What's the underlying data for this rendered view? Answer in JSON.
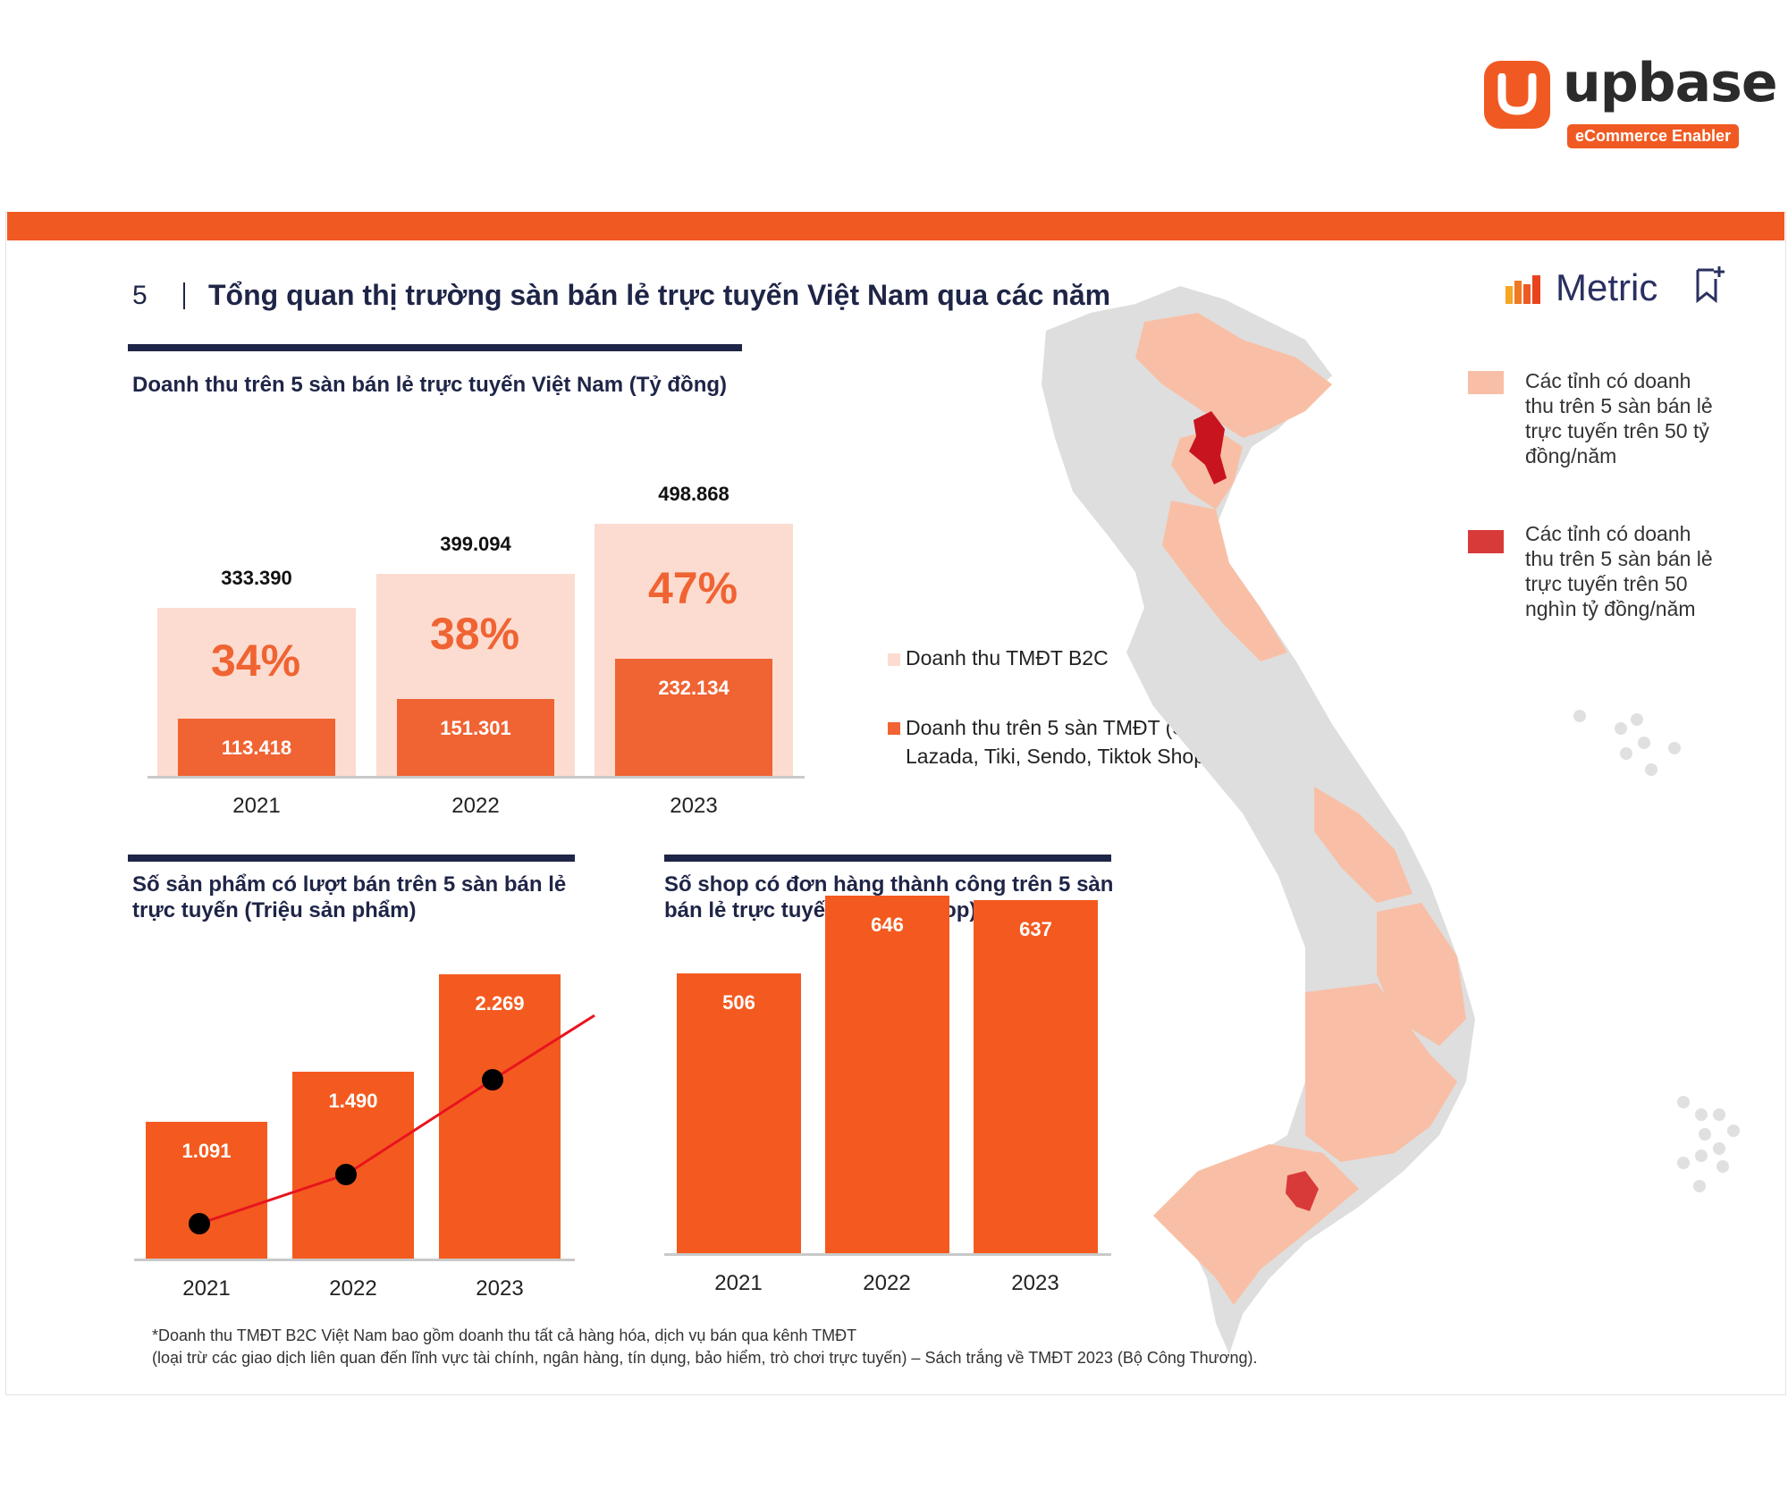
{
  "brand": {
    "logo_word": "upbase",
    "logo_tagline": "eCommerce Enabler",
    "accent": "#f05a22",
    "navy": "#1f2547"
  },
  "slide": {
    "number": "5",
    "title": "Tổng quan thị trường sàn bán lẻ trực tuyến Việt Nam qua các năm",
    "partner": "Metric"
  },
  "legend": {
    "b2c": "Doanh thu TMĐT B2C",
    "five_platforms": "Doanh thu trên 5 sàn TMĐT (Shopee, Lazada, Tiki, Sendo, Tiktok Shop)",
    "five_platforms_line1": "Doanh thu trên 5 sàn TMĐT (Shopee,",
    "five_platforms_line2": "Lazada, Tiki, Sendo, Tiktok Shop)"
  },
  "map_legend": {
    "over_50b": "Các tỉnh có doanh thu trên 5 sàn bán lẻ trực tuyến trên 50 tỷ đồng/năm",
    "over_50k_b": "Các tỉnh có doanh thu trên 5 sàn bán lẻ trực tuyến trên 50 nghìn tỷ đồng/năm",
    "light_color": "#f8bfa6",
    "dark_color": "#d83a3a"
  },
  "footnote": {
    "line1": "*Doanh thu TMĐT B2C Việt Nam bao gồm doanh thu tất cả hàng hóa, dịch vụ bán qua kênh TMĐT",
    "line2": "(loại trừ các giao dịch liên quan đến lĩnh vực tài chính, ngân hàng, tín dụng, bảo hiểm, trò chơi trực tuyến) – Sách trắng về TMĐT 2023 (Bộ Công Thương)."
  },
  "chart_data": [
    {
      "id": "revenue",
      "type": "bar",
      "title": "Doanh thu trên 5 sàn bán lẻ trực tuyến Việt Nam (Tỷ đồng)",
      "categories": [
        "2021",
        "2022",
        "2023"
      ],
      "series": [
        {
          "name": "Doanh thu TMĐT B2C",
          "values": [
            333390,
            399094,
            498868
          ],
          "labels": [
            "333.390",
            "399.094",
            "498.868"
          ],
          "color": "#fcdcd0"
        },
        {
          "name": "Doanh thu trên 5 sàn TMĐT (Shopee, Lazada, Tiki, Sendo, Tiktok Shop)",
          "values": [
            113418,
            151301,
            232134
          ],
          "labels": [
            "113.418",
            "151.301",
            "232.134"
          ],
          "color": "#f06332"
        }
      ],
      "share_labels": [
        "34%",
        "38%",
        "47%"
      ],
      "ylim": [
        0,
        560000
      ]
    },
    {
      "id": "products",
      "type": "bar",
      "title": "Số sản phẩm có lượt bán trên 5 sàn bán lẻ trực tuyến (Triệu sản phẩm)",
      "title_line1": "Số sản phẩm có lượt bán trên 5 sàn bán lẻ",
      "title_line2": "trực tuyến (Triệu sản phẩm)",
      "categories": [
        "2021",
        "2022",
        "2023"
      ],
      "values": [
        1091,
        1490,
        2269
      ],
      "labels": [
        "1.091",
        "1.490",
        "2.269"
      ],
      "trend_line": true,
      "ylim": [
        0,
        2300
      ]
    },
    {
      "id": "shops",
      "type": "bar",
      "title": "Số shop có đơn hàng thành công trên 5 sàn bán lẻ trực tuyến (Nghìn shop)",
      "title_line1": "Số shop có đơn hàng thành công trên 5 sàn",
      "title_line2": "bán lẻ trực tuyến (Nghìn shop)",
      "categories": [
        "2021",
        "2022",
        "2023"
      ],
      "values": [
        506,
        646,
        637
      ],
      "labels": [
        "506",
        "646",
        "637"
      ],
      "ylim": [
        0,
        650
      ]
    }
  ]
}
